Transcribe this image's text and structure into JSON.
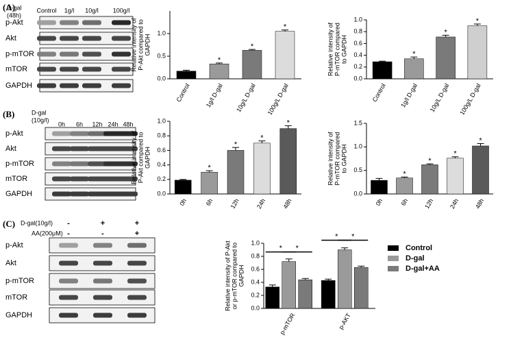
{
  "panels": [
    "(A)",
    "(B)",
    "(C)"
  ],
  "blots": [
    {
      "condition": [
        "D-gal",
        "(48h)"
      ],
      "lanes": [
        "Control",
        "1g/l",
        "10g/l",
        "100g/l"
      ],
      "rows": [
        "p-Akt",
        "Akt",
        "p-mTOR",
        "mTOR",
        "GAPDH"
      ]
    },
    {
      "condition": [
        "D-gal",
        "(10g/l)"
      ],
      "lanes": [
        "0h",
        "6h",
        "12h",
        "24h",
        "48h"
      ],
      "rows": [
        "p-Akt",
        "Akt",
        "p-mTOR",
        "mTOR",
        "GAPDH"
      ]
    },
    {
      "treatments": [
        {
          "name": "D-gal(10g/l)",
          "signs": [
            "-",
            "+",
            "+"
          ]
        },
        {
          "name": "AA(200μM)",
          "signs": [
            "-",
            "-",
            "+"
          ]
        }
      ],
      "rows": [
        "p-Akt",
        "Akt",
        "p-mTOR",
        "mTOR",
        "GAPDH"
      ]
    }
  ],
  "chart_data": [
    {
      "type": "bar",
      "ylabel": [
        "Relative intensity of",
        "P-Akt compared to",
        "GAPDH"
      ],
      "categories": [
        "Control",
        "1g/l D-gal",
        "10g/L D-gal",
        "100g/L D-gal"
      ],
      "values": [
        0.17,
        0.33,
        0.63,
        1.05
      ],
      "errors": [
        0.02,
        0.02,
        0.02,
        0.03
      ],
      "colors": [
        "#000000",
        "#9a9a9a",
        "#7a7a7a",
        "#dcdcdc"
      ],
      "annotations": [
        null,
        "*",
        "*",
        "*"
      ],
      "ylim": [
        0,
        1.5
      ],
      "yticks": [
        {
          "value": 0,
          "label": "0.0"
        },
        0.5,
        {
          "value": 1,
          "label": "1.0"
        }
      ]
    },
    {
      "type": "bar",
      "ylabel": [
        "Relative intensity of",
        "P-mTOR compared",
        "to GAPDH"
      ],
      "categories": [
        "Control",
        "1g/l D-gal",
        "10g/L D-gal",
        "100g/L D-gal"
      ],
      "values": [
        0.29,
        0.34,
        0.71,
        0.9
      ],
      "errors": [
        0.01,
        0.03,
        0.03,
        0.03
      ],
      "colors": [
        "#000000",
        "#9a9a9a",
        "#7a7a7a",
        "#cfcfcf"
      ],
      "annotations": [
        null,
        "*",
        "*",
        "*"
      ],
      "ylim": [
        0,
        1
      ],
      "yticks": [
        {
          "value": 0,
          "label": "0.0"
        },
        0.2,
        0.4,
        0.6,
        0.8,
        {
          "value": 1,
          "label": "1.0"
        }
      ]
    },
    {
      "type": "bar",
      "ylabel": [
        "Relative intensity of",
        "P-Akt compared to",
        "GAPDH"
      ],
      "categories": [
        "0h",
        "6h",
        "12h",
        "24h",
        "48h"
      ],
      "values": [
        0.19,
        0.3,
        0.6,
        0.7,
        0.9
      ],
      "errors": [
        0.01,
        0.02,
        0.04,
        0.03,
        0.04
      ],
      "colors": [
        "#000000",
        "#9a9a9a",
        "#7a7a7a",
        "#dcdcdc",
        "#5a5a5a"
      ],
      "annotations": [
        null,
        "*",
        "*",
        "*",
        "*"
      ],
      "ylim": [
        0,
        1
      ],
      "yticks": [
        {
          "value": 0,
          "label": "0.0"
        },
        0.2,
        0.4,
        0.6,
        0.8,
        {
          "value": 1,
          "label": "1.0"
        }
      ]
    },
    {
      "type": "bar",
      "ylabel": [
        "Relative intensity of",
        "P-mTOR compared",
        "to GAPDH"
      ],
      "categories": [
        "0h",
        "6h",
        "12h",
        "24h",
        "48h"
      ],
      "values": [
        0.29,
        0.34,
        0.62,
        0.76,
        1.02
      ],
      "errors": [
        0.04,
        0.02,
        0.02,
        0.03,
        0.05
      ],
      "colors": [
        "#000000",
        "#9a9a9a",
        "#7a7a7a",
        "#dcdcdc",
        "#5a5a5a"
      ],
      "annotations": [
        null,
        "*",
        "*",
        "*",
        "*"
      ],
      "ylim": [
        0,
        1.5
      ],
      "yticks": [
        {
          "value": 0,
          "label": "0.0"
        },
        0.5,
        {
          "value": 1,
          "label": "1.0"
        },
        1.5
      ]
    },
    {
      "type": "grouped_bar",
      "ylabel": [
        "Relative intensity of  P-Akt",
        "or p-mTOR compared to",
        "GAPDH"
      ],
      "categories": [
        "p-mTOR",
        "p-AKT"
      ],
      "series": [
        {
          "name": "Control",
          "color": "#000000",
          "values": [
            0.33,
            0.43
          ],
          "errors": [
            0.03,
            0.02
          ]
        },
        {
          "name": "D-gal",
          "color": "#9a9a9a",
          "values": [
            0.72,
            0.9
          ],
          "errors": [
            0.04,
            0.03
          ]
        },
        {
          "name": "D-gal+AA",
          "color": "#7a7a7a",
          "values": [
            0.44,
            0.63
          ],
          "errors": [
            0.02,
            0.02
          ]
        }
      ],
      "annotations": [
        "*",
        "*",
        "*",
        "*"
      ],
      "ylim": [
        0,
        1
      ],
      "yticks": [
        {
          "value": 0,
          "label": "0.0"
        },
        0.2,
        0.4,
        0.6,
        0.8,
        {
          "value": 1,
          "label": "1.0"
        }
      ]
    }
  ]
}
